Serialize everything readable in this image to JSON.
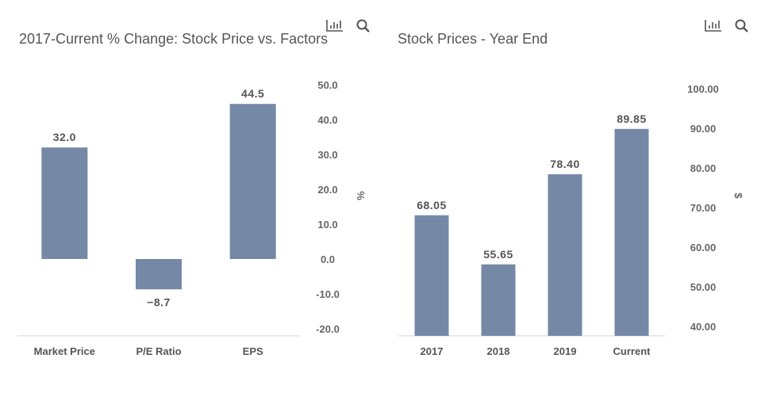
{
  "icons": [
    "bar-chart-icon",
    "search-icon"
  ],
  "bar_color": "#7589a6",
  "chart_data": [
    {
      "type": "bar",
      "title": "2017-Current % Change: Stock Price vs. Factors",
      "categories": [
        "Market Price",
        "P/E Ratio",
        "EPS"
      ],
      "values": [
        32.0,
        -8.7,
        44.5
      ],
      "data_labels": [
        "32.0",
        "−8.7",
        "44.5"
      ],
      "ylabel": "%",
      "yticks": [
        "50.0",
        "40.0",
        "30.0",
        "20.0",
        "10.0",
        "0.0",
        "-10.0",
        "-20.0"
      ],
      "ylim": [
        -22,
        50
      ],
      "y_axis_position": "right",
      "grid": false
    },
    {
      "type": "bar",
      "title": "Stock Prices - Year End",
      "categories": [
        "2017",
        "2018",
        "2019",
        "Current"
      ],
      "values": [
        68.05,
        55.65,
        78.4,
        89.85
      ],
      "data_labels": [
        "68.05",
        "55.65",
        "78.40",
        "89.85"
      ],
      "ylabel": "$",
      "yticks": [
        "100.00",
        "90.00",
        "80.00",
        "70.00",
        "60.00",
        "50.00",
        "40.00"
      ],
      "ylim": [
        37.6,
        100
      ],
      "y_axis_position": "right",
      "grid": false
    }
  ]
}
